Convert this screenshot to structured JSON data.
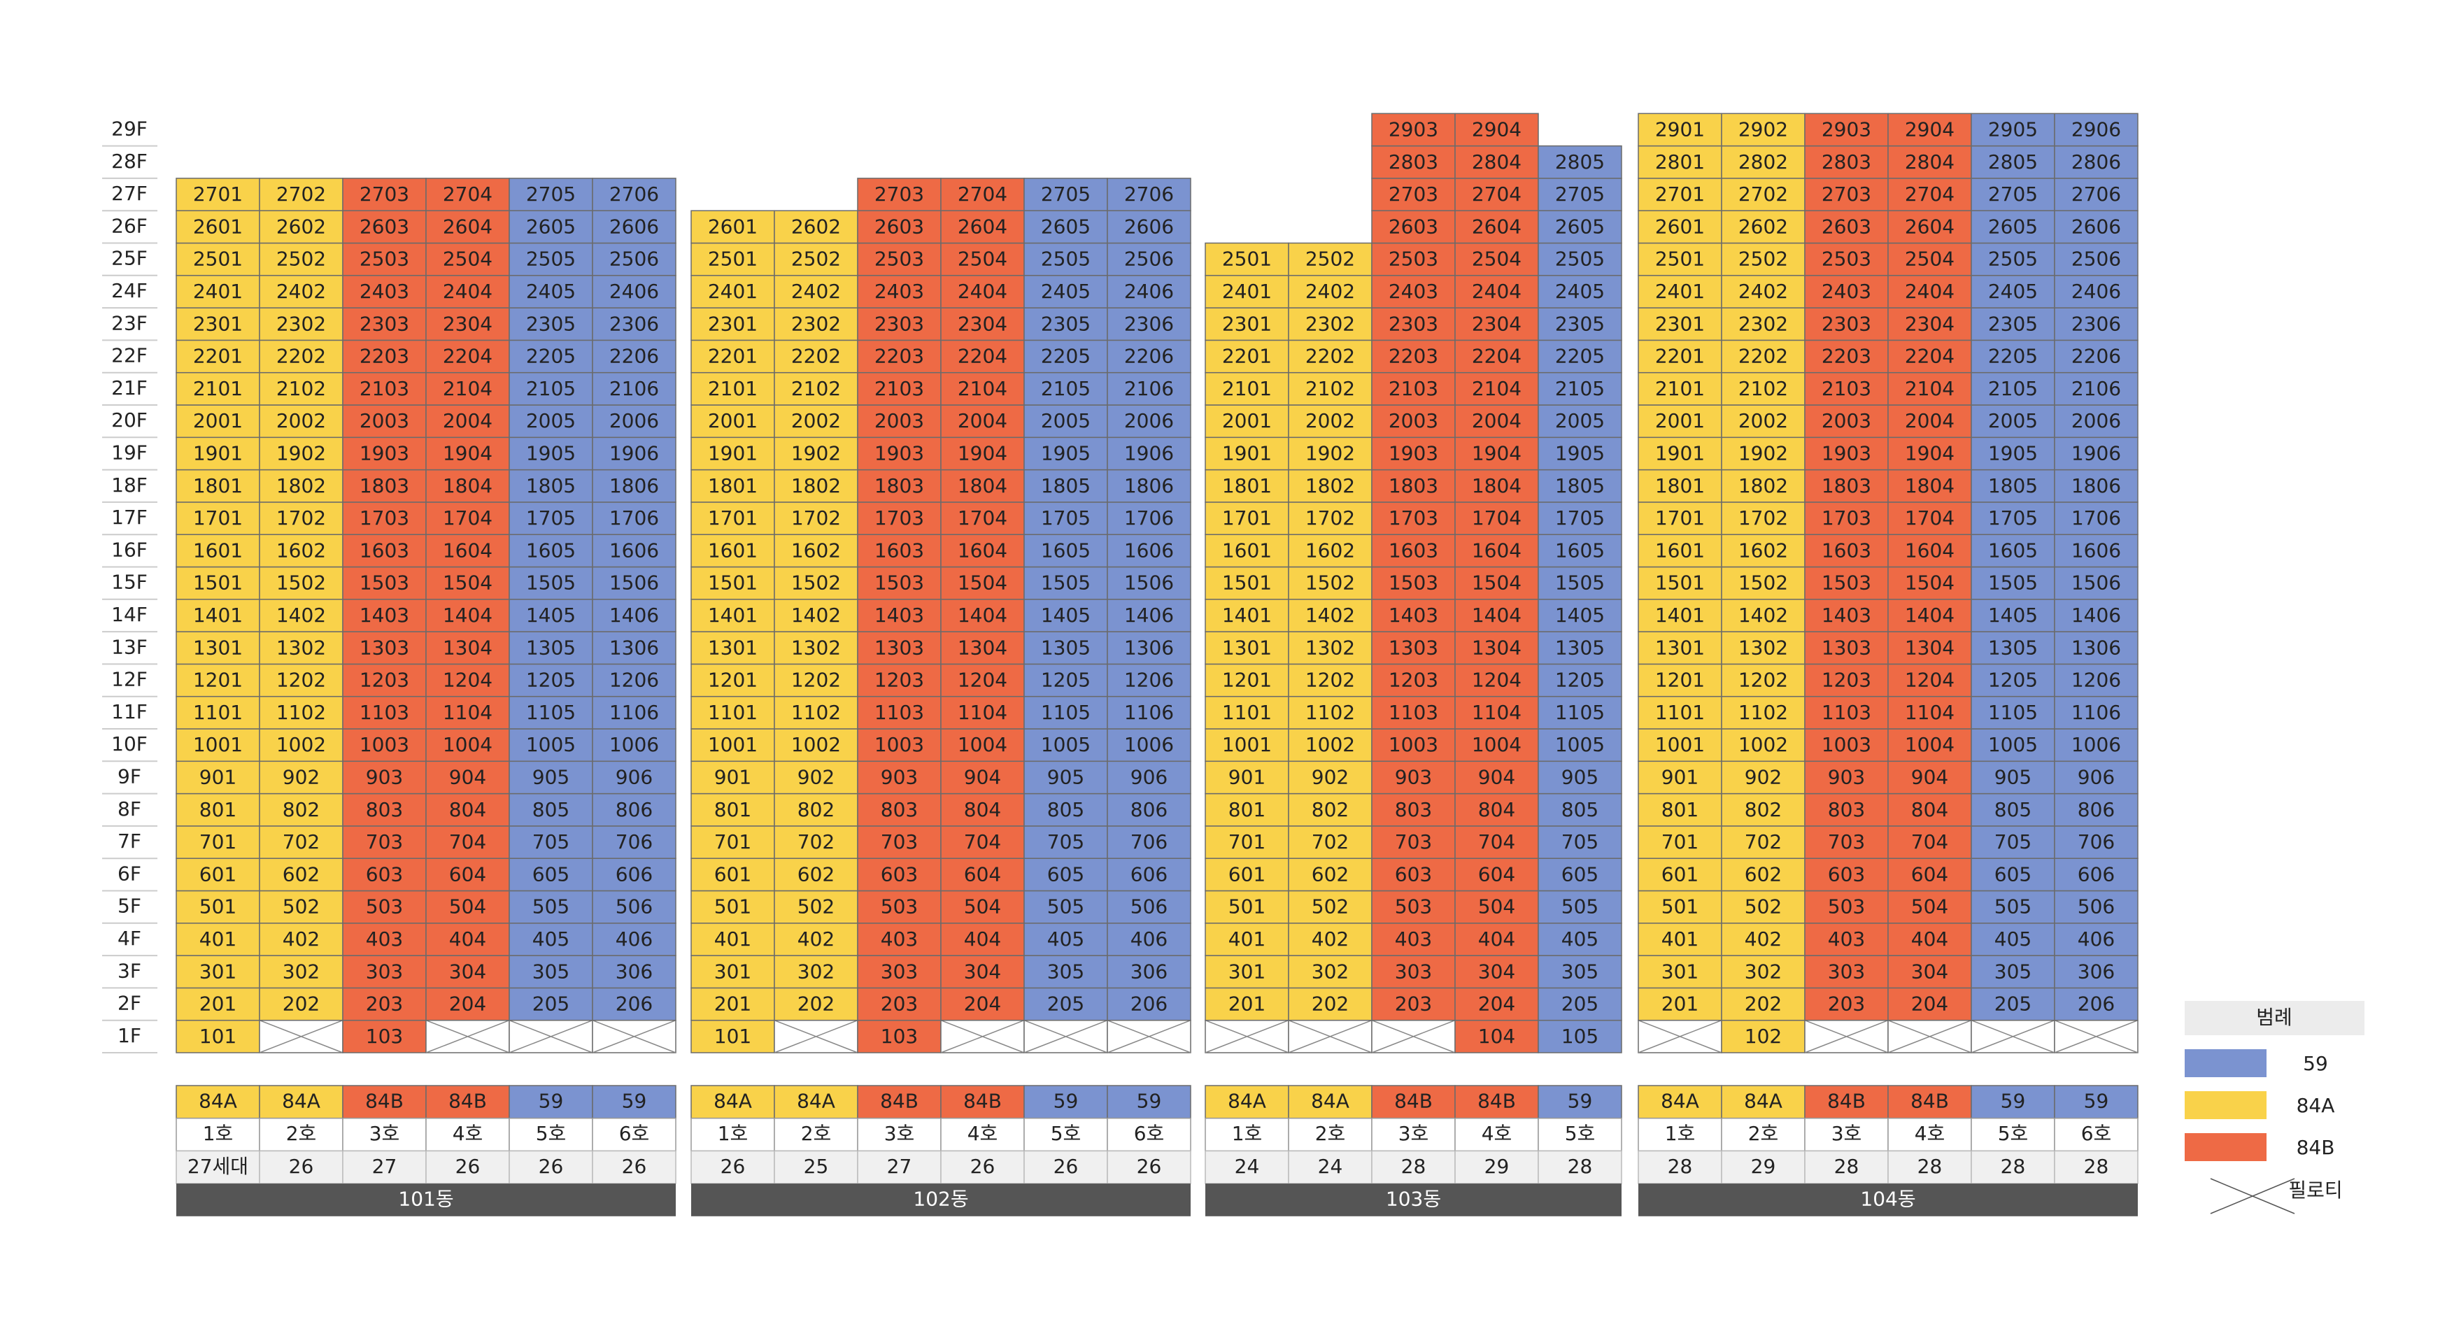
{
  "floors": [
    "1F",
    "2F",
    "3F",
    "4F",
    "5F",
    "6F",
    "7F",
    "8F",
    "9F",
    "10F",
    "11F",
    "12F",
    "13F",
    "14F",
    "15F",
    "16F",
    "17F",
    "18F",
    "19F",
    "20F",
    "21F",
    "22F",
    "23F",
    "24F",
    "25F",
    "26F",
    "27F",
    "28F",
    "29F"
  ],
  "buildings": [
    {
      "name": "101동",
      "lines": [
        {
          "type": "84A",
          "label": "1호",
          "count": "27세대",
          "units": [
            101,
            201,
            301,
            401,
            501,
            601,
            701,
            801,
            901,
            1001,
            1101,
            1201,
            1301,
            1401,
            1501,
            1601,
            1701,
            1801,
            1901,
            2001,
            2101,
            2201,
            2301,
            2401,
            2501,
            2601,
            2701
          ]
        },
        {
          "type": "84A",
          "label": "2호",
          "count": 26,
          "units": [
            null,
            202,
            302,
            402,
            502,
            602,
            702,
            802,
            902,
            1002,
            1102,
            1202,
            1302,
            1402,
            1502,
            1602,
            1702,
            1802,
            1902,
            2002,
            2102,
            2202,
            2302,
            2402,
            2502,
            2602,
            2702
          ]
        },
        {
          "type": "84B",
          "label": "3호",
          "count": 27,
          "units": [
            103,
            203,
            303,
            403,
            503,
            603,
            703,
            803,
            903,
            1003,
            1103,
            1203,
            1303,
            1403,
            1503,
            1603,
            1703,
            1803,
            1903,
            2003,
            2103,
            2203,
            2303,
            2403,
            2503,
            2603,
            2703
          ]
        },
        {
          "type": "84B",
          "label": "4호",
          "count": 26,
          "units": [
            null,
            204,
            304,
            404,
            504,
            604,
            704,
            804,
            904,
            1004,
            1104,
            1204,
            1304,
            1404,
            1504,
            1604,
            1704,
            1804,
            1904,
            2004,
            2104,
            2204,
            2304,
            2404,
            2504,
            2604,
            2704
          ]
        },
        {
          "type": "59",
          "label": "5호",
          "count": 26,
          "units": [
            null,
            205,
            305,
            405,
            505,
            605,
            705,
            805,
            905,
            1005,
            1105,
            1205,
            1305,
            1405,
            1505,
            1605,
            1705,
            1805,
            1905,
            2005,
            2105,
            2205,
            2305,
            2405,
            2505,
            2605,
            2705
          ]
        },
        {
          "type": "59",
          "label": "6호",
          "count": 26,
          "units": [
            null,
            206,
            306,
            406,
            506,
            606,
            706,
            806,
            906,
            1006,
            1106,
            1206,
            1306,
            1406,
            1506,
            1606,
            1706,
            1806,
            1906,
            2006,
            2106,
            2206,
            2306,
            2406,
            2506,
            2606,
            2706
          ]
        }
      ]
    },
    {
      "name": "102동",
      "lines": [
        {
          "type": "84A",
          "label": "1호",
          "count": 26,
          "units": [
            101,
            201,
            301,
            401,
            501,
            601,
            701,
            801,
            901,
            1001,
            1101,
            1201,
            1301,
            1401,
            1501,
            1601,
            1701,
            1801,
            1901,
            2001,
            2101,
            2201,
            2301,
            2401,
            2501,
            2601
          ]
        },
        {
          "type": "84A",
          "label": "2호",
          "count": 25,
          "units": [
            null,
            202,
            302,
            402,
            502,
            602,
            702,
            802,
            902,
            1002,
            1102,
            1202,
            1302,
            1402,
            1502,
            1602,
            1702,
            1802,
            1902,
            2002,
            2102,
            2202,
            2302,
            2402,
            2502,
            2602
          ]
        },
        {
          "type": "84B",
          "label": "3호",
          "count": 27,
          "units": [
            103,
            203,
            303,
            403,
            503,
            603,
            703,
            803,
            903,
            1003,
            1103,
            1203,
            1303,
            1403,
            1503,
            1603,
            1703,
            1803,
            1903,
            2003,
            2103,
            2203,
            2303,
            2403,
            2503,
            2603,
            2703
          ]
        },
        {
          "type": "84B",
          "label": "4호",
          "count": 26,
          "units": [
            null,
            204,
            304,
            404,
            504,
            604,
            704,
            804,
            904,
            1004,
            1104,
            1204,
            1304,
            1404,
            1504,
            1604,
            1704,
            1804,
            1904,
            2004,
            2104,
            2204,
            2304,
            2404,
            2504,
            2604,
            2704
          ]
        },
        {
          "type": "59",
          "label": "5호",
          "count": 26,
          "units": [
            null,
            205,
            305,
            405,
            505,
            605,
            705,
            805,
            905,
            1005,
            1105,
            1205,
            1305,
            1405,
            1505,
            1605,
            1705,
            1805,
            1905,
            2005,
            2105,
            2205,
            2305,
            2405,
            2505,
            2605,
            2705
          ]
        },
        {
          "type": "59",
          "label": "6호",
          "count": 26,
          "units": [
            null,
            206,
            306,
            406,
            506,
            606,
            706,
            806,
            906,
            1006,
            1106,
            1206,
            1306,
            1406,
            1506,
            1606,
            1706,
            1806,
            1906,
            2006,
            2106,
            2206,
            2306,
            2406,
            2506,
            2606,
            2706
          ]
        }
      ]
    },
    {
      "name": "103동",
      "lines": [
        {
          "type": "84A",
          "label": "1호",
          "count": 24,
          "units": [
            null,
            201,
            301,
            401,
            501,
            601,
            701,
            801,
            901,
            1001,
            1101,
            1201,
            1301,
            1401,
            1501,
            1601,
            1701,
            1801,
            1901,
            2001,
            2101,
            2201,
            2301,
            2401,
            2501
          ]
        },
        {
          "type": "84A",
          "label": "2호",
          "count": 24,
          "units": [
            null,
            202,
            302,
            402,
            502,
            602,
            702,
            802,
            902,
            1002,
            1102,
            1202,
            1302,
            1402,
            1502,
            1602,
            1702,
            1802,
            1902,
            2002,
            2102,
            2202,
            2302,
            2402,
            2502
          ]
        },
        {
          "type": "84B",
          "label": "3호",
          "count": 28,
          "units": [
            null,
            203,
            303,
            403,
            503,
            603,
            703,
            803,
            903,
            1003,
            1103,
            1203,
            1303,
            1403,
            1503,
            1603,
            1703,
            1803,
            1903,
            2003,
            2103,
            2203,
            2303,
            2403,
            2503,
            2603,
            2703,
            2803,
            2903
          ]
        },
        {
          "type": "84B",
          "label": "4호",
          "count": 29,
          "units": [
            104,
            204,
            304,
            404,
            504,
            604,
            704,
            804,
            904,
            1004,
            1104,
            1204,
            1304,
            1404,
            1504,
            1604,
            1704,
            1804,
            1904,
            2004,
            2104,
            2204,
            2304,
            2404,
            2504,
            2604,
            2704,
            2804,
            2904
          ]
        },
        {
          "type": "59",
          "label": "5호",
          "count": 28,
          "units": [
            105,
            205,
            305,
            405,
            505,
            605,
            705,
            805,
            905,
            1005,
            1105,
            1205,
            1305,
            1405,
            1505,
            1605,
            1705,
            1805,
            1905,
            2005,
            2105,
            2205,
            2305,
            2405,
            2505,
            2605,
            2705,
            2805
          ]
        }
      ]
    },
    {
      "name": "104동",
      "lines": [
        {
          "type": "84A",
          "label": "1호",
          "count": 28,
          "units": [
            null,
            201,
            301,
            401,
            501,
            601,
            701,
            801,
            901,
            1001,
            1101,
            1201,
            1301,
            1401,
            1501,
            1601,
            1701,
            1801,
            1901,
            2001,
            2101,
            2201,
            2301,
            2401,
            2501,
            2601,
            2701,
            2801,
            2901
          ]
        },
        {
          "type": "84A",
          "label": "2호",
          "count": 29,
          "units": [
            102,
            202,
            302,
            402,
            502,
            602,
            702,
            802,
            902,
            1002,
            1102,
            1202,
            1302,
            1402,
            1502,
            1602,
            1702,
            1802,
            1902,
            2002,
            2102,
            2202,
            2302,
            2402,
            2502,
            2602,
            2702,
            2802,
            2902
          ]
        },
        {
          "type": "84B",
          "label": "3호",
          "count": 28,
          "units": [
            null,
            203,
            303,
            403,
            503,
            603,
            703,
            803,
            903,
            1003,
            1103,
            1203,
            1303,
            1403,
            1503,
            1603,
            1703,
            1803,
            1903,
            2003,
            2103,
            2203,
            2303,
            2403,
            2503,
            2603,
            2703,
            2803,
            2903
          ]
        },
        {
          "type": "84B",
          "label": "4호",
          "count": 28,
          "units": [
            null,
            204,
            304,
            404,
            504,
            604,
            704,
            804,
            904,
            1004,
            1104,
            1204,
            1304,
            1404,
            1504,
            1604,
            1704,
            1804,
            1904,
            2004,
            2104,
            2204,
            2304,
            2404,
            2504,
            2604,
            2704,
            2804,
            2904
          ]
        },
        {
          "type": "59",
          "label": "5호",
          "count": 28,
          "units": [
            null,
            205,
            305,
            405,
            505,
            605,
            705,
            805,
            905,
            1005,
            1105,
            1205,
            1305,
            1405,
            1505,
            1605,
            1705,
            1805,
            1905,
            2005,
            2105,
            2205,
            2305,
            2405,
            2505,
            2605,
            2705,
            2805,
            2905
          ]
        },
        {
          "type": "59",
          "label": "6호",
          "count": 28,
          "units": [
            null,
            206,
            306,
            406,
            506,
            606,
            706,
            806,
            906,
            1006,
            1106,
            1206,
            1306,
            1406,
            1506,
            1606,
            1706,
            1806,
            1906,
            2006,
            2106,
            2206,
            2306,
            2406,
            2506,
            2606,
            2706,
            2806,
            2906
          ]
        }
      ]
    }
  ],
  "legend": {
    "title": "범례",
    "items": [
      {
        "label": "59",
        "color": "#7b93d0"
      },
      {
        "label": "84A",
        "color": "#f9d24a"
      },
      {
        "label": "84B",
        "color": "#ee6a45"
      }
    ],
    "piloti": "필로티"
  }
}
